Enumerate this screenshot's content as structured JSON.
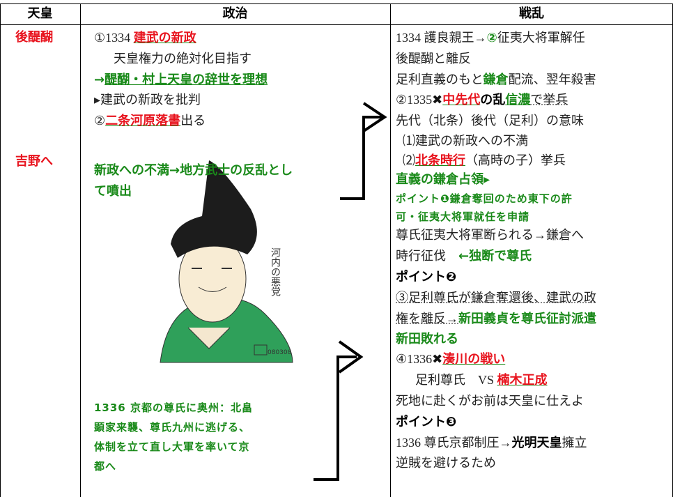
{
  "header": [
    "天皇",
    "政治",
    "戦乱"
  ],
  "emperor": [
    "後醍醐",
    "吉野へ"
  ],
  "politics": [
    [
      "①1334 ",
      "建武の新政"
    ],
    [
      "天皇権力の絶対化目指す"
    ],
    [
      "→",
      "醍醐・村上天皇の辞世を理想"
    ],
    [
      "▸建武の新政を批判"
    ],
    [
      "②",
      "二条河原落書",
      "出る"
    ],
    [
      "新政への不満→地方武士の反乱とし"
    ],
    [
      "て噴出"
    ],
    [
      "1336 京都の尊氏に奥州：北畠"
    ],
    [
      "顕家来襲、尊氏九州に逃げる、"
    ],
    [
      "体制を立て直し大軍を率いて京"
    ],
    [
      "都へ"
    ]
  ],
  "portrait": {
    "caption": "河内の悪党",
    "signature": "080308"
  },
  "war": [
    [
      "1334 護良親王→",
      "②",
      "征夷大将軍解任"
    ],
    [
      "後醍醐と離反"
    ],
    [
      "足利直義のもと",
      "鎌倉",
      "配流、翌年殺害"
    ],
    [
      "②1335",
      "✖",
      "中先代",
      "の乱",
      "信濃",
      "で挙兵"
    ],
    [
      "先代（北条）後代（足利）の意味"
    ],
    [
      "⑴建武の新政への不満"
    ],
    [
      "⑵",
      "北条時行",
      "（高時の子）挙兵"
    ],
    [
      "直義の鎌倉占領▸"
    ],
    [
      "ポイント❶鎌倉奪回のため東下の許"
    ],
    [
      "可・征夷大将軍就任を申請"
    ],
    [
      "尊氏征夷大将軍断られる→鎌倉へ"
    ],
    [
      "時行征伐　",
      "←独断で尊氏"
    ],
    [
      "ポイント❷"
    ],
    [
      "③足利尊氏が鎌倉奪還後、建武の政"
    ],
    [
      "権を離反→",
      "新田義貞を尊氏征討派遣"
    ],
    [
      "新田敗れる"
    ],
    [
      "④1336",
      "✖",
      "湊川の戦い"
    ],
    [
      "足利尊氏　VS ",
      "楠木正成"
    ],
    [
      "死地に赴くがお前は天皇に仕えよ"
    ],
    [
      "ポイント❸"
    ],
    [
      "1336 尊氏京都制圧→",
      "光明天皇",
      "擁立"
    ],
    [
      "逆賊を避けるため"
    ]
  ]
}
